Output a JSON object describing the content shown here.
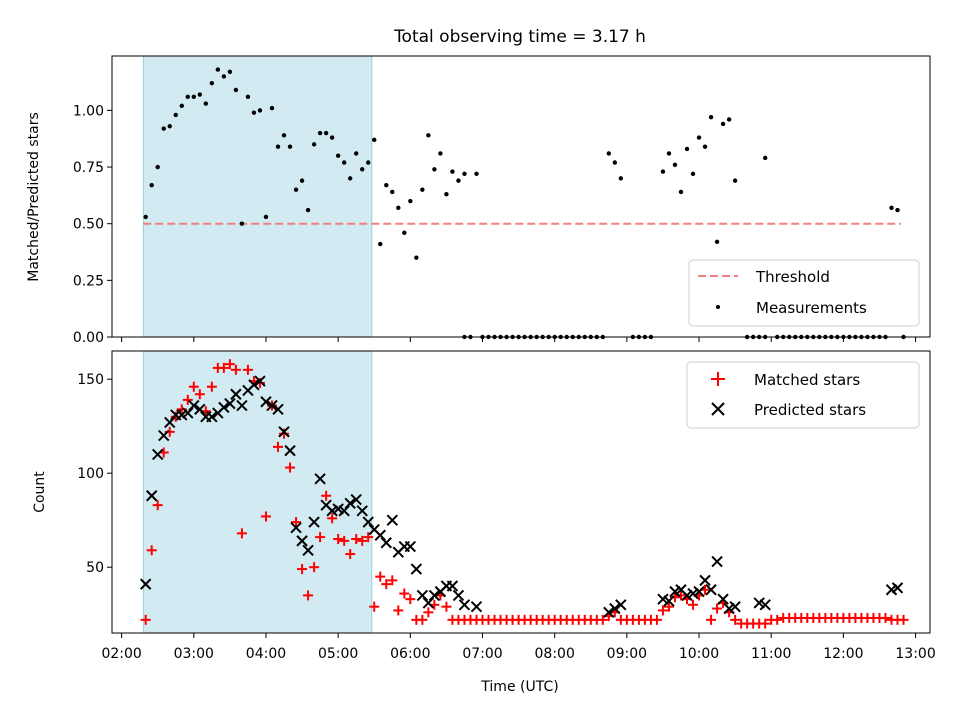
{
  "figure": {
    "title": "Total observing time = 3.17 h"
  },
  "colors": {
    "shade": "#add8e6",
    "threshold": "#f08080",
    "measure": "#000000",
    "matched": "#ff0000",
    "predicted": "#000000"
  },
  "chart_data": [
    {
      "type": "scatter",
      "title": "Total observing time = 3.17 h",
      "xlabel": "",
      "ylabel": "Matched/Predicted stars",
      "xlim": [
        "01:52",
        "13:12"
      ],
      "ylim": [
        0,
        1.24
      ],
      "y_ticks": [
        "0.00",
        "0.25",
        "0.50",
        "0.75",
        "1.00"
      ],
      "y_tick_values": [
        0,
        0.25,
        0.5,
        0.75,
        1.0
      ],
      "shaded_span": [
        "02:18",
        "05:28"
      ],
      "threshold": {
        "value": 0.5,
        "x": [
          "02:18",
          "12:48"
        ]
      },
      "legend": {
        "position": "lower-right",
        "entries": [
          "Threshold",
          "Measurements"
        ]
      },
      "series": [
        {
          "name": "Measurements",
          "x": [
            "02:20",
            "02:25",
            "02:30",
            "02:35",
            "02:40",
            "02:45",
            "02:50",
            "02:55",
            "03:00",
            "03:05",
            "03:10",
            "03:15",
            "03:20",
            "03:25",
            "03:30",
            "03:35",
            "03:40",
            "03:45",
            "03:50",
            "03:55",
            "04:00",
            "04:05",
            "04:10",
            "04:15",
            "04:20",
            "04:25",
            "04:30",
            "04:35",
            "04:40",
            "04:45",
            "04:50",
            "04:55",
            "05:00",
            "05:05",
            "05:10",
            "05:15",
            "05:20",
            "05:25",
            "05:30",
            "05:35",
            "05:40",
            "05:45",
            "05:50",
            "05:55",
            "06:00",
            "06:05",
            "06:10",
            "06:15",
            "06:20",
            "06:25",
            "06:30",
            "06:35",
            "06:40",
            "06:45",
            "06:55",
            "08:45",
            "08:50",
            "08:55",
            "09:30",
            "09:35",
            "09:40",
            "09:45",
            "09:50",
            "09:55",
            "10:00",
            "10:05",
            "10:10",
            "10:15",
            "10:20",
            "10:25",
            "10:30",
            "10:55",
            "12:40",
            "12:45"
          ],
          "y": [
            0.53,
            0.67,
            0.75,
            0.92,
            0.93,
            0.98,
            1.02,
            1.06,
            1.06,
            1.07,
            1.03,
            1.12,
            1.18,
            1.15,
            1.17,
            1.09,
            0.5,
            1.06,
            0.99,
            1.0,
            0.53,
            1.01,
            0.84,
            0.89,
            0.84,
            0.65,
            0.69,
            0.56,
            0.85,
            0.9,
            0.9,
            0.88,
            0.8,
            0.77,
            0.7,
            0.81,
            0.74,
            0.77,
            0.87,
            0.41,
            0.67,
            0.64,
            0.57,
            0.46,
            0.6,
            0.35,
            0.65,
            0.89,
            0.74,
            0.81,
            0.63,
            0.73,
            0.69,
            0.72,
            0.72,
            0.81,
            0.77,
            0.7,
            0.73,
            0.81,
            0.76,
            0.64,
            0.83,
            0.72,
            0.88,
            0.84,
            0.97,
            0.42,
            0.94,
            0.96,
            0.69,
            0.79,
            0.57,
            0.56
          ]
        },
        {
          "name": "",
          "x": [
            "06:45",
            "06:50",
            "07:00",
            "07:05",
            "07:10",
            "07:15",
            "07:20",
            "07:25",
            "07:30",
            "07:35",
            "07:40",
            "07:45",
            "07:50",
            "07:55",
            "08:00",
            "08:05",
            "08:10",
            "08:15",
            "08:20",
            "08:25",
            "08:30",
            "08:35",
            "08:40",
            "09:05",
            "09:10",
            "09:15",
            "09:20",
            "10:40",
            "10:45",
            "10:50",
            "10:55",
            "11:05",
            "11:10",
            "11:15",
            "11:20",
            "11:25",
            "11:30",
            "11:35",
            "11:40",
            "11:45",
            "11:50",
            "11:55",
            "12:00",
            "12:05",
            "12:10",
            "12:15",
            "12:20",
            "12:25",
            "12:30",
            "12:35",
            "12:50"
          ],
          "y": [
            0,
            0,
            0,
            0,
            0,
            0,
            0,
            0,
            0,
            0,
            0,
            0,
            0,
            0,
            0,
            0,
            0,
            0,
            0,
            0,
            0,
            0,
            0,
            0,
            0,
            0,
            0,
            0,
            0,
            0,
            0,
            0,
            0,
            0,
            0,
            0,
            0,
            0,
            0,
            0,
            0,
            0,
            0,
            0,
            0,
            0,
            0,
            0,
            0,
            0,
            0
          ]
        }
      ]
    },
    {
      "type": "scatter",
      "title": "",
      "xlabel": "Time (UTC)",
      "ylabel": "Count",
      "xlim": [
        "01:52",
        "13:12"
      ],
      "ylim": [
        15,
        165
      ],
      "y_ticks": [
        "50",
        "100",
        "150"
      ],
      "y_tick_values": [
        50,
        100,
        150
      ],
      "x_ticks": [
        "02:00",
        "03:00",
        "04:00",
        "05:00",
        "06:00",
        "07:00",
        "08:00",
        "09:00",
        "10:00",
        "11:00",
        "12:00",
        "13:00"
      ],
      "shaded_span": [
        "02:18",
        "05:28"
      ],
      "legend": {
        "position": "upper-right",
        "entries": [
          "Matched stars",
          "Predicted stars"
        ]
      },
      "series": [
        {
          "name": "Matched stars",
          "marker": "+",
          "x": [
            "02:20",
            "02:25",
            "02:30",
            "02:35",
            "02:40",
            "02:45",
            "02:50",
            "02:55",
            "03:00",
            "03:05",
            "03:10",
            "03:15",
            "03:20",
            "03:25",
            "03:30",
            "03:35",
            "03:40",
            "03:45",
            "03:50",
            "03:55",
            "04:00",
            "04:05",
            "04:10",
            "04:15",
            "04:20",
            "04:25",
            "04:30",
            "04:35",
            "04:40",
            "04:45",
            "04:50",
            "04:55",
            "05:00",
            "05:05",
            "05:10",
            "05:15",
            "05:20",
            "05:25",
            "05:30",
            "05:35",
            "05:40",
            "05:45",
            "05:50",
            "05:55",
            "06:00",
            "06:05",
            "06:10",
            "06:15",
            "06:20",
            "06:25",
            "06:30",
            "06:35",
            "06:40",
            "06:45",
            "06:50",
            "06:55",
            "07:00",
            "07:05",
            "07:10",
            "07:15",
            "07:20",
            "07:25",
            "07:30",
            "07:35",
            "07:40",
            "07:45",
            "07:50",
            "07:55",
            "08:00",
            "08:05",
            "08:10",
            "08:15",
            "08:20",
            "08:25",
            "08:30",
            "08:35",
            "08:40",
            "08:45",
            "08:50",
            "08:55",
            "09:00",
            "09:05",
            "09:10",
            "09:15",
            "09:20",
            "09:25",
            "09:30",
            "09:35",
            "09:40",
            "09:45",
            "09:50",
            "09:55",
            "10:00",
            "10:05",
            "10:10",
            "10:15",
            "10:20",
            "10:25",
            "10:30",
            "10:35",
            "10:40",
            "10:45",
            "10:50",
            "10:55",
            "11:00",
            "11:05",
            "11:10",
            "11:15",
            "11:20",
            "11:25",
            "11:30",
            "11:35",
            "11:40",
            "11:45",
            "11:50",
            "11:55",
            "12:00",
            "12:05",
            "12:10",
            "12:15",
            "12:20",
            "12:25",
            "12:30",
            "12:35",
            "12:40",
            "12:45",
            "12:50"
          ],
          "y": [
            22,
            59,
            83,
            111,
            122,
            130,
            134,
            139,
            146,
            142,
            133,
            146,
            156,
            156,
            158,
            155,
            68,
            155,
            149,
            148,
            77,
            136,
            114,
            121,
            103,
            74,
            49,
            35,
            50,
            66,
            88,
            76,
            65,
            64,
            57,
            65,
            64,
            66,
            29,
            45,
            41,
            43,
            27,
            36,
            33,
            22,
            22,
            26,
            30,
            35,
            29,
            22,
            22,
            22,
            22,
            22,
            22,
            22,
            22,
            22,
            22,
            22,
            22,
            22,
            22,
            22,
            22,
            22,
            22,
            22,
            22,
            22,
            22,
            22,
            22,
            22,
            22,
            24,
            26,
            22,
            22,
            22,
            22,
            22,
            22,
            22,
            27,
            29,
            34,
            35,
            33,
            30,
            35,
            38,
            22,
            28,
            31,
            26,
            22,
            20,
            20,
            20,
            20,
            20,
            22,
            22,
            23,
            23,
            23,
            23,
            23,
            23,
            23,
            23,
            23,
            23,
            23,
            23,
            23,
            23,
            23,
            23,
            23,
            23,
            22,
            22,
            22
          ]
        },
        {
          "name": "Predicted stars",
          "marker": "x",
          "x": [
            "02:20",
            "02:25",
            "02:30",
            "02:35",
            "02:40",
            "02:45",
            "02:50",
            "02:55",
            "03:00",
            "03:05",
            "03:10",
            "03:15",
            "03:20",
            "03:25",
            "03:30",
            "03:35",
            "03:40",
            "03:45",
            "03:50",
            "03:55",
            "04:00",
            "04:05",
            "04:10",
            "04:15",
            "04:20",
            "04:25",
            "04:30",
            "04:35",
            "04:40",
            "04:45",
            "04:50",
            "04:55",
            "05:00",
            "05:05",
            "05:10",
            "05:15",
            "05:20",
            "05:25",
            "05:30",
            "05:35",
            "05:40",
            "05:45",
            "05:50",
            "05:55",
            "06:00",
            "06:05",
            "06:10",
            "06:15",
            "06:20",
            "06:25",
            "06:30",
            "06:35",
            "06:40",
            "06:45",
            "06:55",
            "08:45",
            "08:50",
            "08:55",
            "09:30",
            "09:35",
            "09:40",
            "09:45",
            "09:50",
            "09:55",
            "10:00",
            "10:05",
            "10:10",
            "10:15",
            "10:20",
            "10:25",
            "10:30",
            "10:50",
            "10:55",
            "12:40",
            "12:45"
          ],
          "y": [
            41,
            88,
            110,
            120,
            127,
            131,
            131,
            132,
            136,
            134,
            130,
            130,
            132,
            135,
            137,
            142,
            136,
            144,
            147,
            149,
            138,
            136,
            134,
            122,
            112,
            71,
            64,
            59,
            74,
            97,
            83,
            80,
            81,
            80,
            84,
            86,
            80,
            74,
            70,
            67,
            63,
            75,
            58,
            61,
            61,
            49,
            35,
            31,
            35,
            37,
            40,
            40,
            35,
            30,
            29,
            26,
            28,
            30,
            33,
            32,
            37,
            38,
            35,
            36,
            37,
            43,
            38,
            53,
            33,
            28,
            29,
            31,
            30,
            38,
            39
          ]
        }
      ]
    }
  ]
}
